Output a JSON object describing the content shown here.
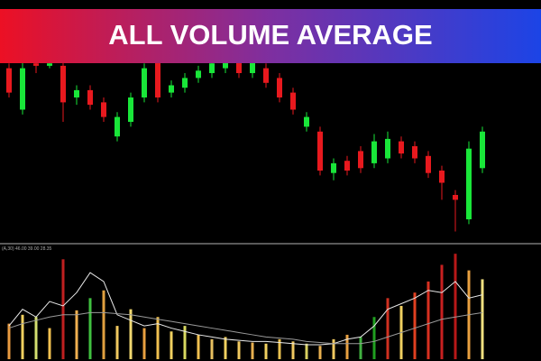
{
  "chart_data": {
    "type": "candlestick",
    "title": "ALL VOLUME AVERAGE",
    "indicator_label": "(A,30) 46.00 39.00 28.35",
    "open": [
      72,
      55,
      74,
      73,
      73,
      60,
      63,
      58,
      44,
      50,
      60,
      75,
      62,
      64,
      68,
      70,
      72,
      75,
      70,
      72,
      68,
      62,
      48,
      46,
      29,
      34,
      38,
      33,
      35,
      42,
      40,
      36,
      30,
      20,
      10,
      31
    ],
    "high": [
      74,
      76,
      76,
      75,
      75,
      65,
      65,
      60,
      54,
      62,
      74,
      77,
      67,
      70,
      73,
      76,
      78,
      77,
      77,
      74,
      70,
      64,
      54,
      48,
      35,
      36,
      40,
      45,
      46,
      44,
      42,
      38,
      32,
      22,
      42,
      48
    ],
    "low": [
      60,
      53,
      70,
      72,
      50,
      57,
      55,
      50,
      42,
      48,
      58,
      58,
      60,
      62,
      66,
      68,
      70,
      68,
      68,
      64,
      58,
      53,
      46,
      28,
      26,
      28,
      29,
      31,
      33,
      35,
      33,
      27,
      18,
      5,
      8,
      29
    ],
    "close": [
      62,
      72,
      73,
      74,
      58,
      63,
      57,
      52,
      52,
      60,
      72,
      60,
      65,
      68,
      71,
      74,
      76,
      70,
      75,
      66,
      60,
      55,
      52,
      30,
      33,
      30,
      31,
      42,
      43,
      37,
      35,
      29,
      25,
      18,
      39,
      46
    ],
    "up_color": "#19e639",
    "down_color": "#e8191e",
    "ylim": [
      0,
      100
    ],
    "volume": {
      "values": [
        32,
        40,
        38,
        28,
        90,
        44,
        55,
        62,
        30,
        45,
        28,
        38,
        25,
        30,
        22,
        18,
        20,
        16,
        15,
        14,
        18,
        16,
        14,
        12,
        18,
        22,
        20,
        38,
        55,
        48,
        60,
        70,
        85,
        95,
        80,
        72
      ],
      "colors": [
        "#e89a40",
        "#f0d060",
        "#d4e070",
        "#f0c050",
        "#c02020",
        "#f0b050",
        "#40c040",
        "#e0a040",
        "#f0c860",
        "#f0d870",
        "#e8a040",
        "#f0c050",
        "#f0d060",
        "#d8d860",
        "#f0c050",
        "#e8c060",
        "#f0d060",
        "#f0c860",
        "#e8b050",
        "#f0d060",
        "#e8c050",
        "#f0c860",
        "#d8d060",
        "#e8b050",
        "#f0c860",
        "#e8a040",
        "#40b040",
        "#20a020",
        "#d03020",
        "#f0d060",
        "#e04020",
        "#d83020",
        "#c82020",
        "#b81818",
        "#e8a040",
        "#f0e080"
      ],
      "ylim": [
        0,
        100
      ],
      "averages": [
        {
          "color": "#e8e8e8",
          "values": [
            30,
            45,
            38,
            52,
            48,
            60,
            78,
            70,
            40,
            35,
            30,
            32,
            28,
            25,
            22,
            20,
            18,
            17,
            16,
            16,
            15,
            14,
            13,
            13,
            14,
            18,
            20,
            30,
            45,
            50,
            55,
            62,
            60,
            70,
            55,
            58
          ]
        },
        {
          "color": "#9a9a9a",
          "values": [
            28,
            32,
            35,
            38,
            40,
            40,
            42,
            42,
            41,
            40,
            38,
            36,
            34,
            32,
            30,
            28,
            26,
            24,
            22,
            20,
            19,
            18,
            16,
            15,
            14,
            14,
            14,
            16,
            20,
            24,
            28,
            32,
            36,
            38,
            40,
            42
          ]
        }
      ]
    }
  }
}
